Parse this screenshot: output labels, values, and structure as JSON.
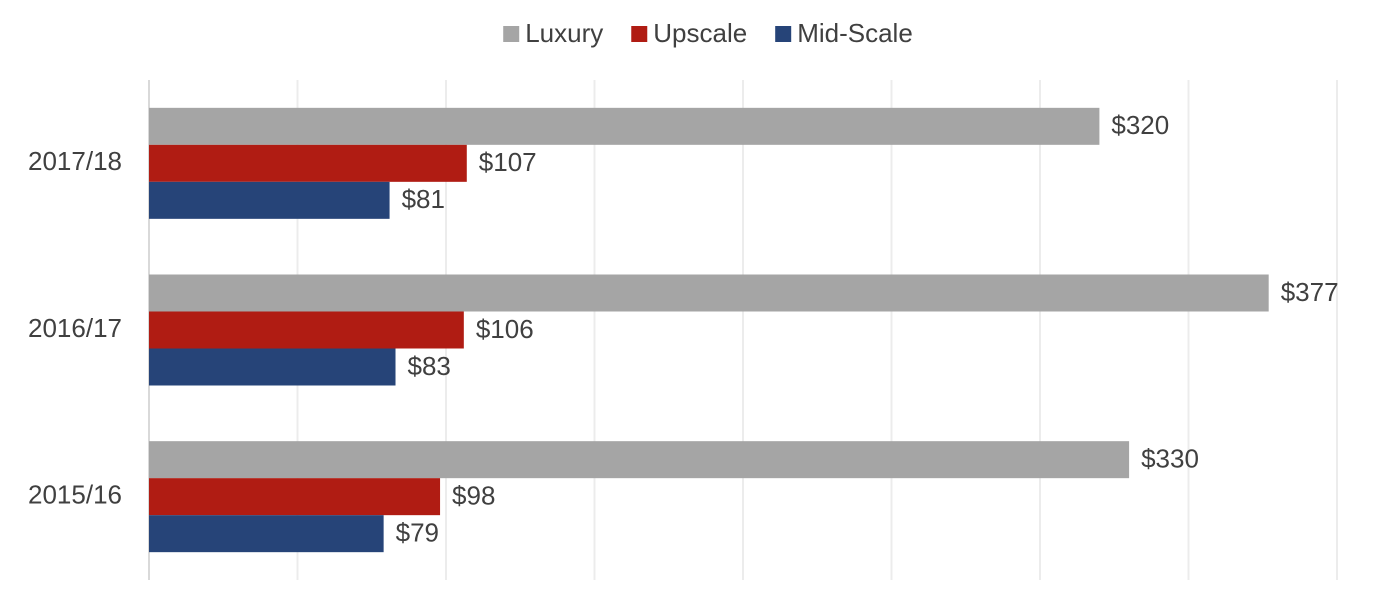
{
  "chart_data": {
    "type": "bar",
    "orientation": "horizontal",
    "categories": [
      "2017/18",
      "2016/17",
      "2015/16"
    ],
    "series": [
      {
        "name": "Luxury",
        "color": "#a5a5a5",
        "values": [
          320,
          377,
          330
        ],
        "value_labels": [
          "$320",
          "$377",
          "$330"
        ]
      },
      {
        "name": "Upscale",
        "color": "#b01c13",
        "values": [
          107,
          106,
          98
        ],
        "value_labels": [
          "$107",
          "$106",
          "$98"
        ]
      },
      {
        "name": "Mid-Scale",
        "color": "#264478",
        "values": [
          81,
          83,
          79
        ],
        "value_labels": [
          "$81",
          "$83",
          "$79"
        ]
      }
    ],
    "xlim": [
      0,
      400
    ],
    "xticks": [
      0,
      50,
      100,
      150,
      200,
      250,
      300,
      350,
      400
    ],
    "grid": true,
    "legend": "top"
  }
}
